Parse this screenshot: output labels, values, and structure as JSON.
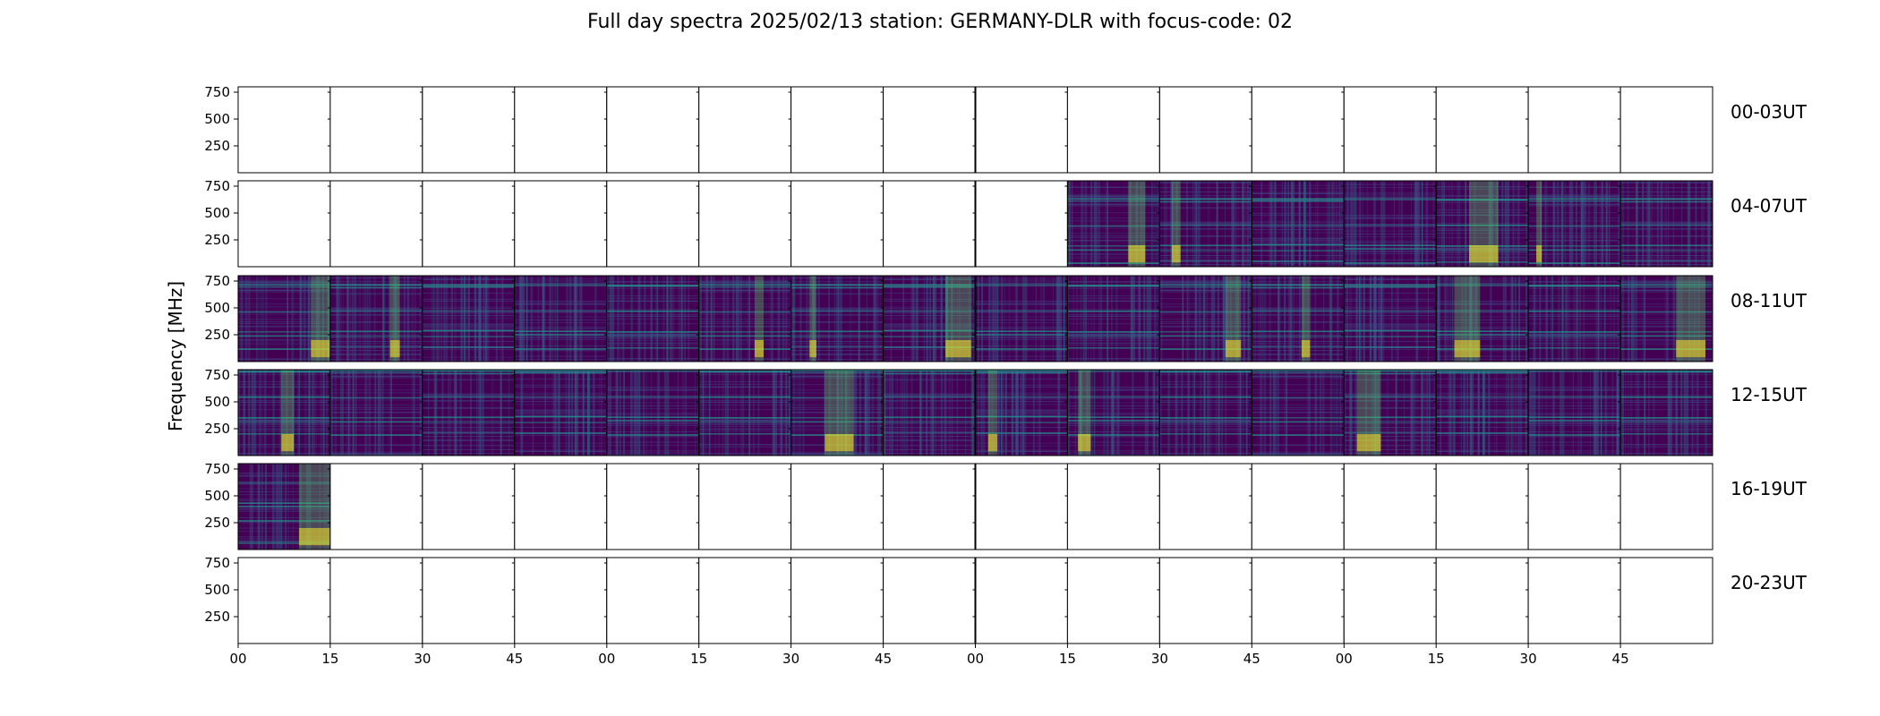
{
  "chart_data": {
    "type": "heatmap",
    "title": "Full day spectra 2025/02/13 station: GERMANY-DLR with focus-code: 02",
    "ylabel": "Frequency [MHz]",
    "xlabel": "",
    "y_ticks": [
      250,
      500,
      750
    ],
    "x_tick_labels": [
      "00",
      "15",
      "30",
      "45",
      "00",
      "15",
      "30",
      "45",
      "00",
      "15",
      "30",
      "45",
      "00",
      "15",
      "30",
      "45"
    ],
    "rows": [
      {
        "label": "00-03UT",
        "has_data": [
          false,
          false,
          false,
          false,
          false,
          false,
          false,
          false,
          false,
          false,
          false,
          false,
          false,
          false,
          false,
          false
        ]
      },
      {
        "label": "04-07UT",
        "has_data": [
          false,
          false,
          false,
          false,
          false,
          false,
          false,
          false,
          false,
          true,
          true,
          true,
          true,
          true,
          true,
          true
        ]
      },
      {
        "label": "08-11UT",
        "has_data": [
          true,
          true,
          true,
          true,
          true,
          true,
          true,
          true,
          true,
          true,
          true,
          true,
          true,
          true,
          true,
          true
        ]
      },
      {
        "label": "12-15UT",
        "has_data": [
          true,
          true,
          true,
          true,
          true,
          true,
          true,
          true,
          true,
          true,
          true,
          true,
          true,
          true,
          true,
          true
        ]
      },
      {
        "label": "16-19UT",
        "has_data": [
          true,
          false,
          false,
          false,
          false,
          false,
          false,
          false,
          false,
          false,
          false,
          false,
          false,
          false,
          false,
          false
        ]
      },
      {
        "label": "20-23UT",
        "has_data": [
          false,
          false,
          false,
          false,
          false,
          false,
          false,
          false,
          false,
          false,
          false,
          false,
          false,
          false,
          false,
          false
        ]
      }
    ],
    "colormap": [
      "#440154",
      "#3b528b",
      "#21918c",
      "#5ec962",
      "#fde725"
    ],
    "background_color": "#440154",
    "grid": false
  }
}
